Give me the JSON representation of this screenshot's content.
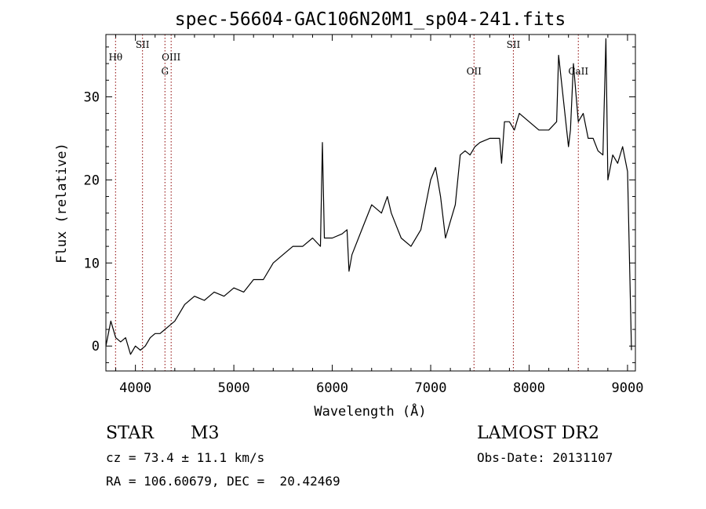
{
  "chart_data": {
    "type": "line",
    "title": "spec-56604-GAC106N20M1_sp04-241.fits",
    "xlabel": "Wavelength (Å)",
    "ylabel": "Flux (relative)",
    "xlim": [
      3700,
      9080
    ],
    "ylim": [
      -3,
      37.5
    ],
    "xticks": [
      4000,
      5000,
      6000,
      7000,
      8000,
      9000
    ],
    "yticks": [
      0,
      10,
      20,
      30
    ],
    "grid": false,
    "series": [
      {
        "line_color": "#000000",
        "x": [
          3700,
          3750,
          3800,
          3850,
          3900,
          3950,
          4000,
          4050,
          4100,
          4150,
          4200,
          4250,
          4300,
          4350,
          4400,
          4450,
          4500,
          4600,
          4700,
          4800,
          4900,
          5000,
          5100,
          5200,
          5300,
          5400,
          5500,
          5600,
          5700,
          5800,
          5880,
          5900,
          5920,
          6000,
          6100,
          6150,
          6170,
          6200,
          6300,
          6400,
          6500,
          6560,
          6600,
          6700,
          6800,
          6900,
          7000,
          7050,
          7100,
          7150,
          7200,
          7250,
          7300,
          7350,
          7400,
          7450,
          7500,
          7600,
          7700,
          7720,
          7750,
          7800,
          7850,
          7900,
          8000,
          8100,
          8200,
          8280,
          8300,
          8400,
          8420,
          8450,
          8500,
          8550,
          8600,
          8650,
          8700,
          8750,
          8780,
          8800,
          8850,
          8900,
          8950,
          9000,
          9040
        ],
        "y": [
          0,
          3,
          1,
          0.5,
          1,
          -1,
          0,
          -0.5,
          0,
          1,
          1.5,
          1.5,
          2,
          2.5,
          3,
          4,
          5,
          6,
          5.5,
          6.5,
          6,
          7,
          6.5,
          8,
          8,
          10,
          11,
          12,
          12,
          13,
          12,
          24.5,
          13,
          13,
          13.5,
          14,
          9,
          11,
          14,
          17,
          16,
          18,
          16,
          13,
          12,
          14,
          20,
          21.5,
          18,
          13,
          15,
          17,
          23,
          23.5,
          23,
          24,
          24.5,
          25,
          25,
          22,
          27,
          27,
          26,
          28,
          27,
          26,
          26,
          27,
          35,
          24,
          26,
          34,
          27,
          28,
          25,
          25,
          23.5,
          23,
          37,
          20,
          23,
          22,
          24,
          21,
          -0.5
        ]
      }
    ],
    "lines": [
      {
        "x": 3798,
        "label": "Hθ",
        "color": "#8b0000",
        "label_pos": "upper"
      },
      {
        "x": 4072,
        "label": "SII",
        "color": "#8b0000",
        "label_pos": "top"
      },
      {
        "x": 4300,
        "label": "G",
        "color": "#8b0000",
        "label_pos": "lower"
      },
      {
        "x": 4363,
        "label": "OIII",
        "color": "#8b0000",
        "label_pos": "upper"
      },
      {
        "x": 7440,
        "label": "OII",
        "color": "#8b0000",
        "label_pos": "lower"
      },
      {
        "x": 7840,
        "label": "SII",
        "color": "#8b0000",
        "label_pos": "top"
      },
      {
        "x": 8500,
        "label": "CaII",
        "color": "#8b0000",
        "label_pos": "lower"
      }
    ]
  },
  "info": {
    "class_label": "STAR",
    "subclass_label": "M3",
    "survey": "LAMOST DR2",
    "redshift": "cz = 73.4 ± 11.1 km/s",
    "obs_date": "Obs-Date: 20131107",
    "coords": "RA = 106.60679, DEC =  20.42469"
  }
}
